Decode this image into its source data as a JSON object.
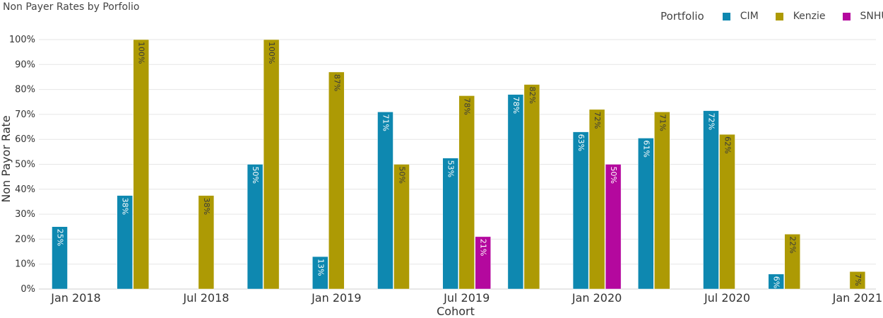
{
  "title": "Non Payer Rates by Porfolio",
  "legend_title": "Portfolio",
  "chart_data": {
    "type": "bar",
    "xlabel": "Cohort",
    "ylabel": "Non Payor Rate",
    "ylim": [
      0,
      100
    ],
    "y_ticks": [
      "0%",
      "10%",
      "20%",
      "30%",
      "40%",
      "50%",
      "60%",
      "70%",
      "80%",
      "90%",
      "100%"
    ],
    "x_ticks": [
      "Jan 2018",
      "Jul 2018",
      "Jan 2019",
      "Jul 2019",
      "Jan 2020",
      "Jul 2020",
      "Jan 2021"
    ],
    "grid": true,
    "legend_position": "top-right",
    "categories": [
      "Jan 2018",
      "Apr 2018",
      "Jul 2018",
      "Oct 2018",
      "Jan 2019",
      "Apr 2019",
      "Jul 2019",
      "Oct 2019",
      "Jan 2020",
      "Apr 2020",
      "Jul 2020",
      "Oct 2020",
      "Jan 2021"
    ],
    "series": [
      {
        "name": "CIM",
        "color": "#0e88b0",
        "values": [
          25,
          37.5,
          null,
          50,
          13,
          71,
          52.5,
          78,
          63,
          60.5,
          71.5,
          6,
          null
        ],
        "labels": [
          "25%",
          "38%",
          "",
          "50%",
          "13%",
          "71%",
          "53%",
          "78%",
          "63%",
          "61%",
          "72%",
          "6%",
          ""
        ]
      },
      {
        "name": "Kenzie",
        "color": "#ad9a04",
        "values": [
          null,
          100,
          37.5,
          100,
          87,
          50,
          77.5,
          82,
          72,
          71,
          62,
          22,
          7
        ],
        "labels": [
          "",
          "100%",
          "38%",
          "100%",
          "87%",
          "50%",
          "78%",
          "82%",
          "72%",
          "71%",
          "62%",
          "22%",
          "7%"
        ]
      },
      {
        "name": "SNHU",
        "color": "#b4089e",
        "values": [
          null,
          null,
          null,
          null,
          null,
          null,
          21,
          null,
          50,
          null,
          null,
          null,
          null
        ],
        "labels": [
          "",
          "",
          "",
          "",
          "",
          "",
          "21%",
          "",
          "50%",
          "",
          "",
          "",
          ""
        ]
      }
    ]
  }
}
